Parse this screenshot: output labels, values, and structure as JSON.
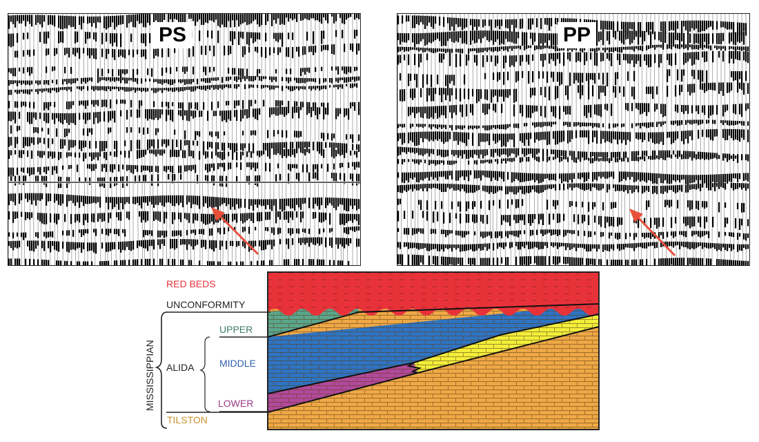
{
  "panels": [
    {
      "label": "PS"
    },
    {
      "label": "PP"
    }
  ],
  "diagram": {
    "units": {
      "red_beds": "RED BEDS",
      "unconformity": "UNCONFORMITY",
      "mississippian": "MISSISSIPPIAN",
      "alida": "ALIDA",
      "upper": "UPPER",
      "middle": "MIDDLE",
      "lower": "LOWER",
      "tilston": "TILSTON"
    },
    "colors": {
      "red_beds": "#e8323a",
      "upper_green": "#5aa58c",
      "middle_blue": "#2f74c2",
      "yellow": "#f2ee3b",
      "lower_magenta": "#b24a9c",
      "tilston_orange": "#eea846",
      "upper_label": "#3d7c6a",
      "middle_label": "#2f5fae",
      "lower_label": "#9c3a86",
      "tilston_label": "#c8922e",
      "arrow": "#e8503a"
    }
  }
}
